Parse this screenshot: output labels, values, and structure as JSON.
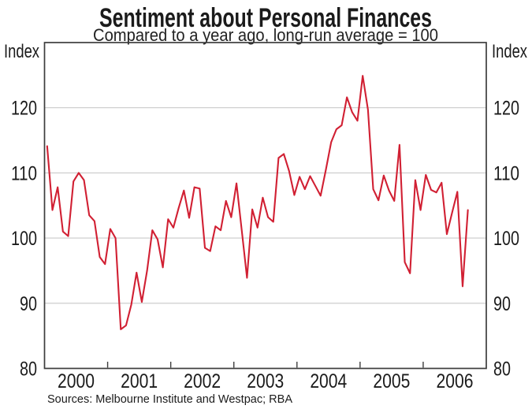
{
  "title": "Sentiment about Personal Finances",
  "subtitle": "Compared to a year ago, long-run average = 100",
  "axis": {
    "left_unit": "Index",
    "right_unit": "Index"
  },
  "source": "Sources: Melbourne Institute and Westpac; RBA",
  "colors": {
    "line": "#d12033",
    "grid": "#c9c9c9",
    "frame": "#3d3d3d",
    "text": "#1b1b1b"
  },
  "chart_data": {
    "type": "line",
    "title": "Sentiment about Personal Finances",
    "subtitle": "Compared to a year ago, long-run average = 100",
    "ylabel_left": "Index",
    "ylabel_right": "Index",
    "ylim": [
      80,
      130
    ],
    "yticks": [
      80,
      90,
      100,
      110,
      120
    ],
    "xticks_years": [
      2000,
      2001,
      2002,
      2003,
      2004,
      2005,
      2006
    ],
    "x_domain_months": 84,
    "grid": true,
    "legend": "none",
    "series": [
      {
        "name": "Sentiment about personal finances (index, long-run average = 100)",
        "color": "#d12033",
        "frequency": "monthly",
        "start": "2000-01",
        "end": "2006-09",
        "values": [
          114.1,
          104.3,
          107.8,
          101.0,
          100.3,
          108.7,
          110.0,
          108.9,
          103.5,
          102.6,
          97.1,
          96.0,
          101.4,
          100.0,
          86.0,
          86.6,
          89.8,
          94.7,
          90.2,
          95.0,
          101.2,
          99.8,
          95.5,
          102.9,
          101.6,
          104.6,
          107.3,
          103.1,
          107.8,
          107.6,
          98.5,
          98.0,
          101.8,
          101.2,
          105.7,
          103.2,
          108.4,
          101.2,
          93.9,
          104.4,
          101.6,
          106.2,
          103.2,
          102.5,
          112.3,
          112.9,
          110.3,
          106.6,
          109.4,
          107.5,
          109.5,
          108.0,
          106.5,
          110.5,
          114.7,
          116.7,
          117.3,
          121.6,
          119.3,
          118.0,
          124.9,
          119.7,
          107.5,
          105.8,
          109.6,
          107.3,
          105.7,
          114.3,
          96.3,
          94.6,
          108.9,
          104.3,
          109.7,
          107.4,
          107.0,
          108.5,
          100.6,
          103.9,
          107.1,
          92.6,
          104.3
        ]
      }
    ]
  }
}
